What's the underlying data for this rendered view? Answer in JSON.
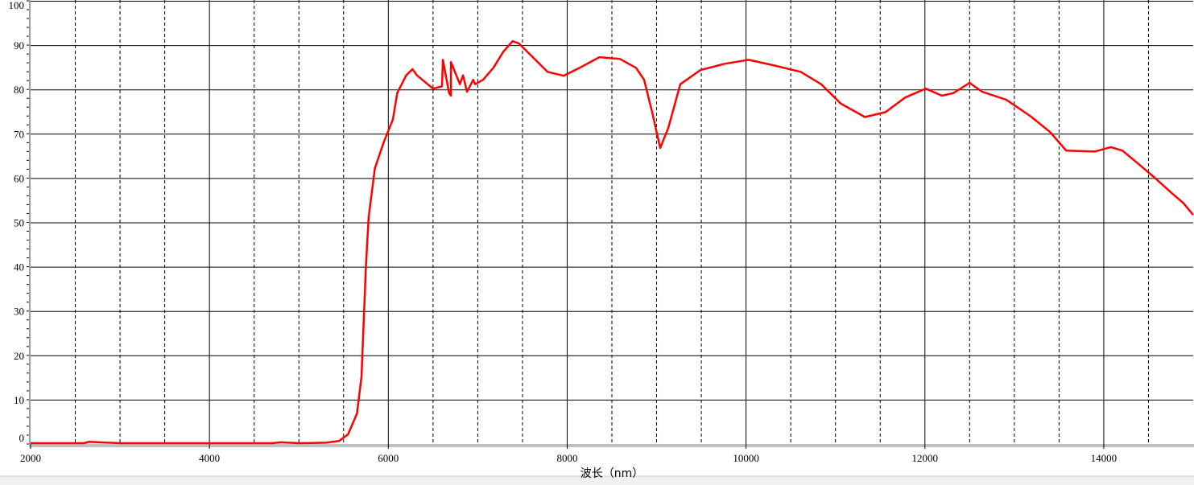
{
  "chart_data": {
    "type": "line",
    "title": "",
    "xlabel": "波长（nm）",
    "ylabel": "",
    "xlim": [
      2000,
      15000
    ],
    "ylim": [
      0,
      100
    ],
    "xticks": [
      "2000",
      "4000",
      "6000",
      "8000",
      "10000",
      "12000",
      "14000"
    ],
    "yticks": [
      "0",
      "10",
      "20",
      "30",
      "40",
      "50",
      "60",
      "70",
      "80",
      "90",
      "100"
    ],
    "grid": {
      "major": "solid",
      "minor_x": "dashed",
      "minor_x_step": 500,
      "major_x_step": 2000,
      "y_step": 10
    },
    "series_color": "#ff0000",
    "series": [
      {
        "x": [
          2000,
          2600,
          2650,
          3000,
          3500,
          4000,
          4700,
          4800,
          5000,
          5300,
          5450,
          5550,
          5650,
          5700,
          5750,
          5780,
          5850,
          5950,
          6050,
          6100,
          6200,
          6270,
          6320,
          6500,
          6600,
          6680,
          6700,
          6800,
          6950,
          6610,
          6700,
          6835,
          6880,
          6970,
          7060,
          7175,
          7285,
          7390,
          7460,
          7600,
          7780,
          7960,
          8140,
          8360,
          8590,
          8770,
          8860,
          8950,
          9040,
          9130,
          9265,
          9490,
          9760,
          10030,
          10300,
          10610,
          10840,
          11060,
          11330,
          11560,
          11780,
          12010,
          12190,
          12320,
          12500,
          12640,
          12910,
          13180,
          13400,
          13580,
          13900,
          14080,
          14210,
          14390,
          14570,
          14750,
          14890,
          15000
        ],
        "y": [
          0,
          0,
          0.3,
          0,
          0,
          0,
          0,
          0.2,
          0,
          0.1,
          0.5,
          2,
          6.7,
          15,
          40,
          51,
          62,
          68,
          73,
          79,
          83,
          84.4,
          83,
          80,
          80.5,
          79,
          78.4,
          81,
          82,
          86.5,
          86,
          83,
          79.3,
          81,
          82,
          84.7,
          88.3,
          90.7,
          90.2,
          87.4,
          83.8,
          82.9,
          84.7,
          87.1,
          86.7,
          84.7,
          82,
          74.7,
          66.6,
          71.1,
          81,
          84.2,
          85.6,
          86.5,
          85.3,
          83.8,
          81,
          76.6,
          73.6,
          74.7,
          78,
          80,
          78.4,
          79,
          81.3,
          79.3,
          77.5,
          73.8,
          70.2,
          66,
          65.8,
          66.8,
          66,
          63,
          59.9,
          56.6,
          54.2,
          51.5
        ]
      }
    ]
  }
}
